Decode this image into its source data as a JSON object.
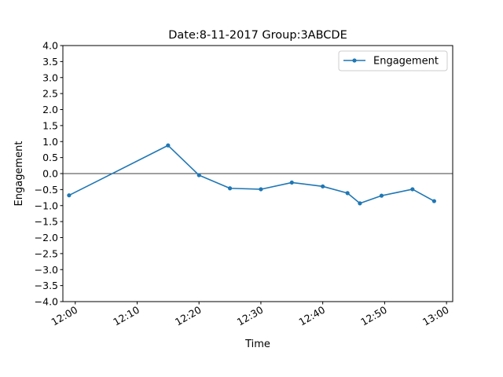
{
  "chart_data": {
    "type": "line",
    "title": "Date:8-11-2017 Group:3ABCDE",
    "xlabel": "Time",
    "ylabel": "Engagement",
    "ylim": [
      -4.0,
      4.0
    ],
    "xlim": [
      "11:58",
      "13:01"
    ],
    "legend_position": "top-right",
    "grid": false,
    "zero_line": true,
    "x_ticks": [
      "12:00",
      "12:10",
      "12:20",
      "12:30",
      "12:40",
      "12:50",
      "13:00"
    ],
    "y_ticks": [
      "4.0",
      "3.5",
      "3.0",
      "2.5",
      "2.0",
      "1.5",
      "1.0",
      "0.5",
      "0.0",
      "−0.5",
      "−1.0",
      "−1.5",
      "−2.0",
      "−2.5",
      "−3.0",
      "−3.5",
      "−4.0"
    ],
    "series": [
      {
        "name": "Engagement",
        "color": "#1f77b4",
        "marker": "point",
        "x": [
          "11:59",
          "12:15",
          "12:20",
          "12:25",
          "12:30",
          "12:35",
          "12:40",
          "12:44",
          "12:46",
          "12:49.5",
          "12:54.5",
          "12:58"
        ],
        "values": [
          -0.68,
          0.88,
          -0.05,
          -0.46,
          -0.49,
          -0.28,
          -0.4,
          -0.61,
          -0.93,
          -0.69,
          -0.49,
          -0.86
        ]
      }
    ]
  }
}
